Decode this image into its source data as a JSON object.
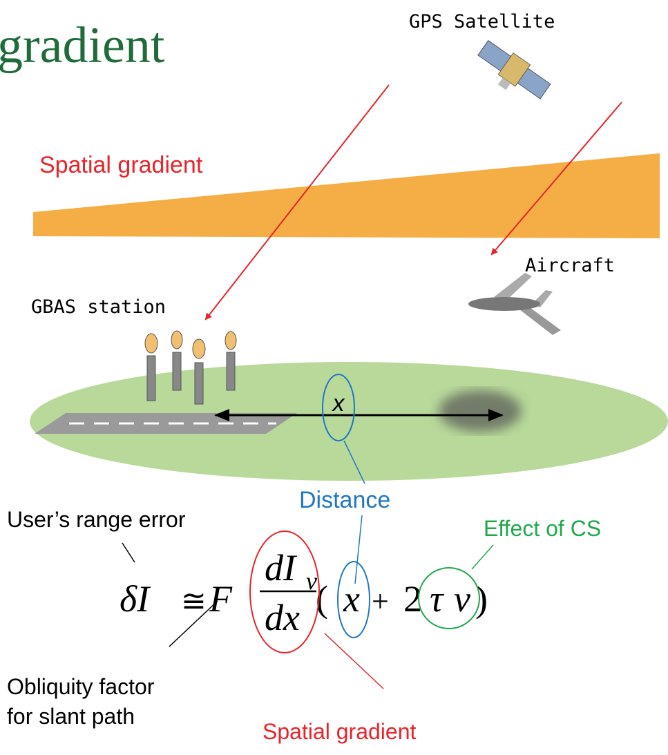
{
  "title": "gradient",
  "labels": {
    "satellite": "GPS Satellite",
    "spatial_gradient_top": "Spatial gradient",
    "aircraft": "Aircraft",
    "station": "GBAS station",
    "x": "x",
    "distance": "Distance",
    "range_error": "User’s range error",
    "effect_cs": "Effect of CS",
    "obliquity_1": "Obliquity factor",
    "obliquity_2": "for slant path",
    "spatial_gradient_bottom": "Spatial gradient"
  },
  "equation": {
    "lhs": "δI",
    "approx": "≅",
    "factor": "F",
    "numerator": "dI",
    "subscript": "v",
    "denominator": "dx",
    "open": "(",
    "x": "x",
    "plus": "+",
    "two": "2",
    "tau": "τ",
    "v": "v",
    "close": ")"
  }
}
